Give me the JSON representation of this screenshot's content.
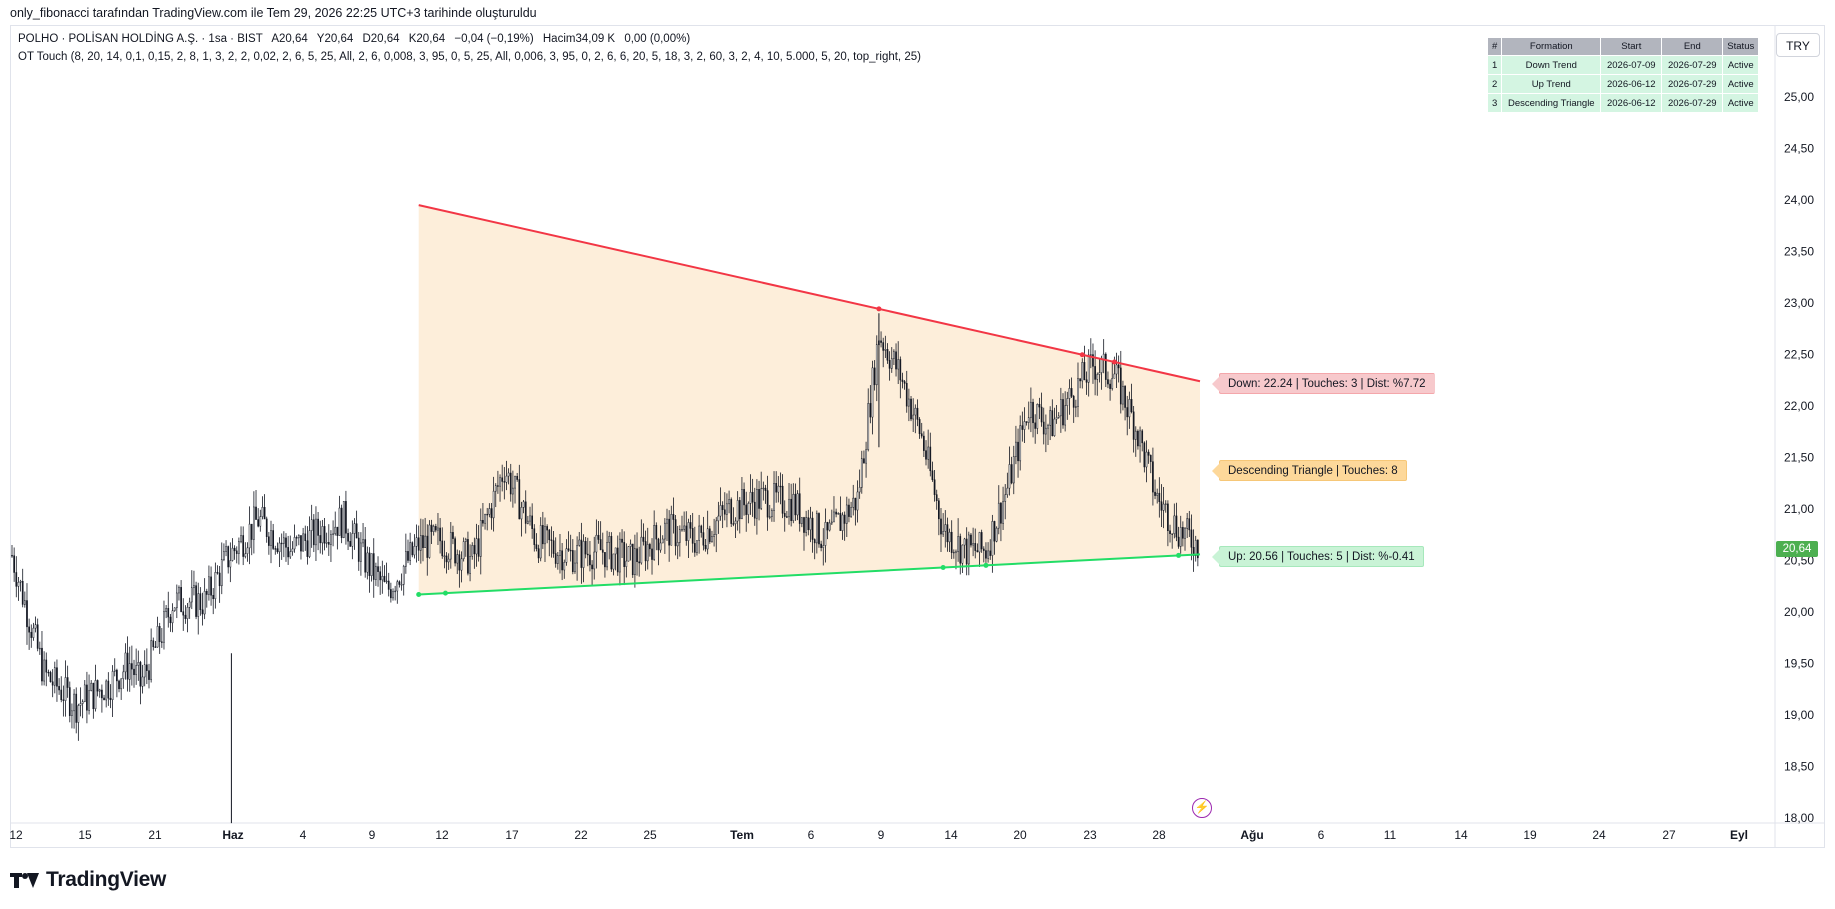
{
  "header": {
    "created_by": "only_fibonacci tarafından TradingView.com ile Tem 29, 2026 22:25 UTC+3 tarihinde oluşturuldu"
  },
  "legend": {
    "symbol": "POLHO · POLİSAN HOLDİNG A.Ş. · 1sa · BIST",
    "open": "A20,64",
    "high": "Y20,64",
    "low": "D20,64",
    "close": "K20,64",
    "change": "−0,04 (−0,19%)",
    "volume": "Hacim34,09 K",
    "volume_change": "0,00 (0,00%)",
    "indicator": "OT Touch (8, 20, 14, 0,1, 0,15, 2, 8, 1, 3, 2, 2, 0,02, 2, 6, 5, 25, All, 2, 6, 0,008, 3, 95, 0, 5, 25, All, 0,006, 3, 95, 0, 2, 6, 6, 20, 5, 18, 3, 2, 60, 3, 2, 4, 10, 5.000, 5, 20, top_right, 25)"
  },
  "currency": "TRY",
  "last_price": "20,64",
  "formation_table": {
    "headers": [
      "#",
      "Formation",
      "Start",
      "End",
      "Status"
    ],
    "rows": [
      [
        "1",
        "Down Trend",
        "2026-07-09",
        "2026-07-29",
        "Active"
      ],
      [
        "2",
        "Up Trend",
        "2026-06-12",
        "2026-07-29",
        "Active"
      ],
      [
        "3",
        "Descending Triangle",
        "2026-06-12",
        "2026-07-29",
        "Active"
      ]
    ]
  },
  "labels": {
    "down": "Down: 22.24 | Touches: 3 | Dist: %7.72",
    "triangle": "Descending Triangle | Touches: 8",
    "up": "Up: 20.56 | Touches: 5 | Dist: %-0.41"
  },
  "logo_text": "TradingView",
  "icons": {
    "flash": "lightning-icon",
    "logo": "tradingview-logo-icon"
  },
  "colors": {
    "down_line": "#f23645",
    "up_line": "#22dd66",
    "triangle_fill": "#fdebd3",
    "candle": "#131722",
    "price_badge": "#4caf50"
  },
  "chart_data": {
    "type": "candlestick",
    "timeframe": "1h",
    "y_axis": {
      "ticks": [
        "25,00",
        "24,50",
        "24,00",
        "23,50",
        "23,00",
        "22,50",
        "22,00",
        "21,50",
        "21,00",
        "20,50",
        "20,00",
        "19,50",
        "19,00",
        "18,50",
        "18,00"
      ],
      "ylim": [
        18.0,
        25.0
      ]
    },
    "x_axis": {
      "ticks": [
        "12",
        "15",
        "21",
        "Haz",
        "4",
        "9",
        "12",
        "17",
        "22",
        "25",
        "Tem",
        "6",
        "9",
        "14",
        "20",
        "23",
        "28",
        "Ağu",
        "6",
        "11",
        "14",
        "19",
        "24",
        "27",
        "Eyl"
      ],
      "bold_ticks": [
        "Haz",
        "Tem",
        "Ağu",
        "Eyl"
      ]
    },
    "price_path": [
      {
        "t": 0,
        "p": 20.55
      },
      {
        "t": 3,
        "p": 19.4
      },
      {
        "t": 6,
        "p": 19.1
      },
      {
        "t": 9,
        "p": 19.3
      },
      {
        "t": 11,
        "p": 19.5
      },
      {
        "t": 12,
        "p": 19.3
      },
      {
        "t": 14,
        "p": 19.8
      },
      {
        "t": 15,
        "p": 20.1
      },
      {
        "t": 18,
        "p": 20.1
      },
      {
        "t": 20,
        "p": 20.5
      },
      {
        "t": 23,
        "p": 20.9
      },
      {
        "t": 26,
        "p": 20.6
      },
      {
        "t": 29,
        "p": 20.8
      },
      {
        "t": 31,
        "p": 20.9
      },
      {
        "t": 33,
        "p": 20.5
      },
      {
        "t": 35,
        "p": 20.2
      },
      {
        "t": 38,
        "p": 20.65
      },
      {
        "t": 40,
        "p": 20.7
      },
      {
        "t": 43,
        "p": 20.5
      },
      {
        "t": 46,
        "p": 21.4
      },
      {
        "t": 49,
        "p": 20.7
      },
      {
        "t": 52,
        "p": 20.55
      },
      {
        "t": 55,
        "p": 20.6
      },
      {
        "t": 58,
        "p": 20.5
      },
      {
        "t": 61,
        "p": 20.8
      },
      {
        "t": 64,
        "p": 20.7
      },
      {
        "t": 67,
        "p": 21.0
      },
      {
        "t": 70,
        "p": 21.1
      },
      {
        "t": 73,
        "p": 21.05
      },
      {
        "t": 76,
        "p": 20.7
      },
      {
        "t": 79,
        "p": 21.1
      },
      {
        "t": 81,
        "p": 22.7
      },
      {
        "t": 83,
        "p": 22.3
      },
      {
        "t": 85,
        "p": 21.7
      },
      {
        "t": 87,
        "p": 20.8
      },
      {
        "t": 89,
        "p": 20.6
      },
      {
        "t": 91,
        "p": 20.6
      },
      {
        "t": 93,
        "p": 21.2
      },
      {
        "t": 95,
        "p": 22.0
      },
      {
        "t": 97,
        "p": 21.8
      },
      {
        "t": 99,
        "p": 22.1
      },
      {
        "t": 101,
        "p": 22.4
      },
      {
        "t": 103,
        "p": 22.3
      },
      {
        "t": 105,
        "p": 21.8
      },
      {
        "t": 107,
        "p": 21.1
      },
      {
        "t": 109,
        "p": 20.8
      },
      {
        "t": 111,
        "p": 20.64
      }
    ],
    "trendlines": {
      "down": {
        "start": 23.95,
        "end": 22.24,
        "touches": 3
      },
      "up": {
        "start": 20.17,
        "end": 20.56,
        "touches": 5
      }
    },
    "last_close": 20.64
  }
}
